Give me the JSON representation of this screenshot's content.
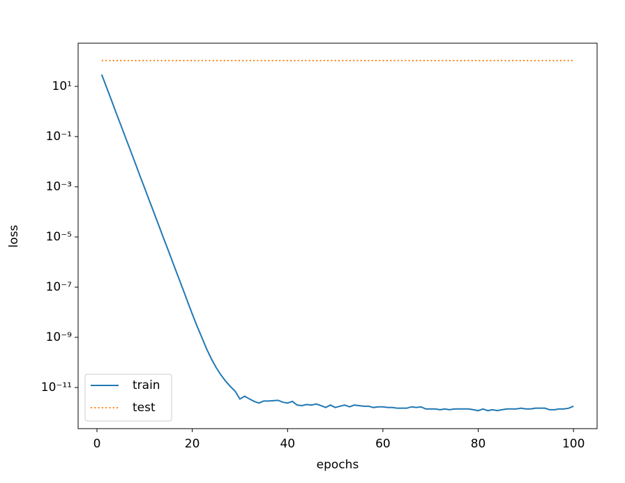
{
  "chart_data": {
    "type": "line",
    "xlabel": "epochs",
    "ylabel": "loss",
    "x": [
      1,
      2,
      3,
      4,
      5,
      6,
      7,
      8,
      9,
      10,
      11,
      12,
      13,
      14,
      15,
      16,
      17,
      18,
      19,
      20,
      21,
      22,
      23,
      24,
      25,
      26,
      27,
      28,
      29,
      30,
      31,
      32,
      33,
      34,
      35,
      36,
      37,
      38,
      39,
      40,
      41,
      42,
      43,
      44,
      45,
      46,
      47,
      48,
      49,
      50,
      51,
      52,
      53,
      54,
      55,
      56,
      57,
      58,
      59,
      60,
      61,
      62,
      63,
      64,
      65,
      66,
      67,
      68,
      69,
      70,
      71,
      72,
      73,
      74,
      75,
      76,
      77,
      78,
      79,
      80,
      81,
      82,
      83,
      84,
      85,
      86,
      87,
      88,
      89,
      90,
      91,
      92,
      93,
      94,
      95,
      96,
      97,
      98,
      99,
      100
    ],
    "series": [
      {
        "name": "train",
        "color": "#1f77b4",
        "style": "solid",
        "values": [
          29.5,
          9.3,
          2.95,
          0.91,
          0.29,
          0.091,
          0.029,
          0.0091,
          0.0028,
          0.00089,
          0.00028,
          8.9e-05,
          2.8e-05,
          8.7e-06,
          2.8e-06,
          8.7e-07,
          2.75e-07,
          8.7e-08,
          2.7e-08,
          8.5e-09,
          2.8e-09,
          1e-09,
          3.5e-10,
          1.4e-10,
          6.3e-11,
          3.2e-11,
          1.8e-11,
          1.1e-11,
          7.1e-12,
          3.5e-12,
          4.5e-12,
          3.5e-12,
          2.8e-12,
          2.4e-12,
          2.9e-12,
          2.9e-12,
          3e-12,
          3.1e-12,
          2.6e-12,
          2.4e-12,
          2.8e-12,
          2e-12,
          1.9e-12,
          2.1e-12,
          2e-12,
          2.2e-12,
          1.9e-12,
          1.6e-12,
          2e-12,
          1.6e-12,
          1.8e-12,
          2e-12,
          1.7e-12,
          2e-12,
          1.9e-12,
          1.8e-12,
          1.8e-12,
          1.6e-12,
          1.7e-12,
          1.7e-12,
          1.6e-12,
          1.6e-12,
          1.5e-12,
          1.5e-12,
          1.5e-12,
          1.7e-12,
          1.6e-12,
          1.7e-12,
          1.4e-12,
          1.4e-12,
          1.4e-12,
          1.3e-12,
          1.4e-12,
          1.3e-12,
          1.4e-12,
          1.4e-12,
          1.4e-12,
          1.4e-12,
          1.3e-12,
          1.2e-12,
          1.4e-12,
          1.2e-12,
          1.3e-12,
          1.2e-12,
          1.3e-12,
          1.4e-12,
          1.4e-12,
          1.4e-12,
          1.5e-12,
          1.4e-12,
          1.4e-12,
          1.5e-12,
          1.5e-12,
          1.5e-12,
          1.3e-12,
          1.3e-12,
          1.4e-12,
          1.4e-12,
          1.5e-12,
          1.8e-12
        ]
      },
      {
        "name": "test",
        "color": "#ff7f0e",
        "style": "dotted",
        "values": [
          107,
          107,
          107,
          107,
          107,
          107,
          107,
          107,
          107,
          107,
          107,
          107,
          107,
          107,
          107,
          107,
          107,
          107,
          107,
          107,
          107,
          107,
          107,
          107,
          107,
          107,
          107,
          107,
          107,
          107,
          107,
          107,
          107,
          107,
          107,
          107,
          107,
          107,
          107,
          107,
          107,
          107,
          107,
          107,
          107,
          107,
          107,
          107,
          107,
          107,
          107,
          107,
          107,
          107,
          107,
          107,
          107,
          107,
          107,
          107,
          107,
          107,
          107,
          107,
          107,
          107,
          107,
          107,
          107,
          107,
          107,
          107,
          107,
          107,
          107,
          107,
          107,
          107,
          107,
          107,
          107,
          107,
          107,
          107,
          107,
          107,
          107,
          107,
          107,
          107,
          107,
          107,
          107,
          107,
          107,
          107,
          107,
          107,
          107,
          107
        ]
      }
    ],
    "xlim": [
      -3.95,
      104.95
    ],
    "xticks": [
      0,
      20,
      40,
      60,
      80,
      100
    ],
    "ylim": [
      2.3e-13,
      525
    ],
    "yscale": "log",
    "yticks": [
      {
        "value": 10,
        "label": "10¹"
      },
      {
        "value": 0.1,
        "label": "10⁻¹"
      },
      {
        "value": 0.001,
        "label": "10⁻³"
      },
      {
        "value": 1e-05,
        "label": "10⁻⁵"
      },
      {
        "value": 1e-07,
        "label": "10⁻⁷"
      },
      {
        "value": 1e-09,
        "label": "10⁻⁹"
      },
      {
        "value": 1e-11,
        "label": "10⁻¹¹"
      }
    ],
    "legend": "lower left",
    "grid": false
  }
}
